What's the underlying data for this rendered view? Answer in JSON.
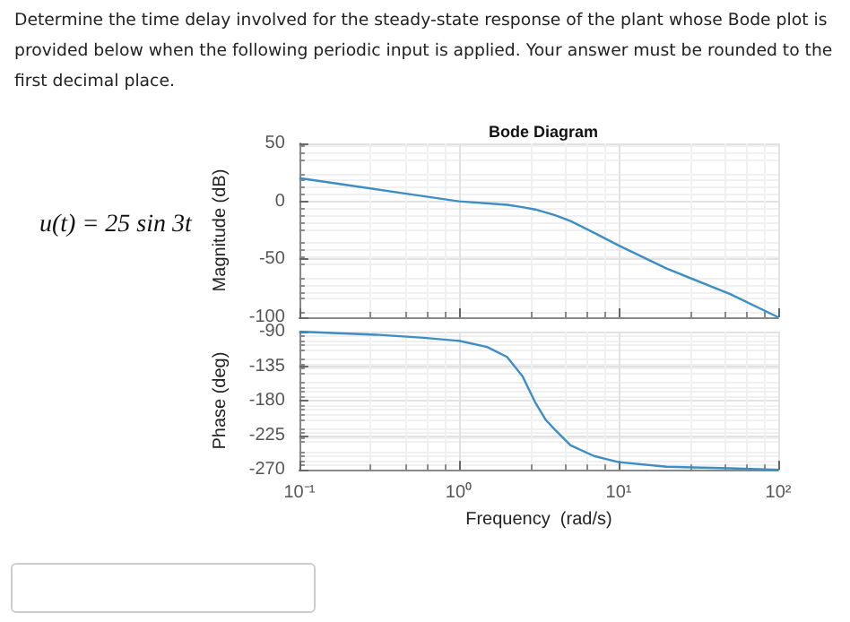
{
  "chart_data": [
    {
      "type": "line",
      "title": "Bode Diagram",
      "ylabel": "Magnitude (dB)",
      "annotations": [
        "Determine the time delay involved for the steady-state response of the plant whose Bode plot is provided below when the following periodic input is applied. Your answer must be rounded to the first decimal place.",
        "u(t) = 25 sin 3t"
      ],
      "x": [
        0.1,
        0.2,
        0.5,
        1,
        2,
        2.5,
        3,
        4,
        5,
        7,
        10,
        20,
        50,
        100
      ],
      "series": [
        {
          "color": "#3d8ec4",
          "values": [
            20,
            14,
            6,
            0,
            -3,
            -5,
            -7,
            -12,
            -17,
            -27,
            -38,
            -58,
            -80,
            -100
          ]
        }
      ],
      "xlim": [
        0.1,
        100
      ],
      "xticks": [
        {
          "value": 0.1,
          "label": null
        },
        {
          "value": 1,
          "label": null
        },
        {
          "value": 10,
          "label": null
        },
        {
          "value": 100,
          "label": null
        }
      ],
      "ylim": [
        -100,
        50
      ],
      "yticks": [
        -100,
        -50,
        0,
        50
      ],
      "log": "x",
      "grid": true,
      "marker": "none",
      "tick_labels": "y"
    },
    {
      "type": "line",
      "xlabel": "Frequency  (rad/s)",
      "ylabel": "Phase (deg)",
      "x": [
        0.1,
        0.3,
        0.6,
        1,
        1.5,
        2,
        2.5,
        3,
        3.5,
        4,
        5,
        7,
        10,
        20,
        50,
        100
      ],
      "series": [
        {
          "color": "#3d8ec4",
          "values": [
            -90,
            -94,
            -98,
            -102,
            -110,
            -123,
            -148,
            -182,
            -205,
            -218,
            -238,
            -252,
            -260,
            -266,
            -268,
            -270
          ]
        }
      ],
      "xlim": [
        0.1,
        100
      ],
      "xticks": [
        {
          "value": 0.1,
          "label": "10⁻¹"
        },
        {
          "value": 1,
          "label": "10⁰"
        },
        {
          "value": 10,
          "label": "10¹"
        },
        {
          "value": 100,
          "label": "10²"
        }
      ],
      "ylim": [
        -270,
        -90
      ],
      "yticks": [
        -270,
        -225,
        -180,
        -135,
        -90
      ],
      "log": "x",
      "grid": true,
      "marker": "none"
    }
  ]
}
